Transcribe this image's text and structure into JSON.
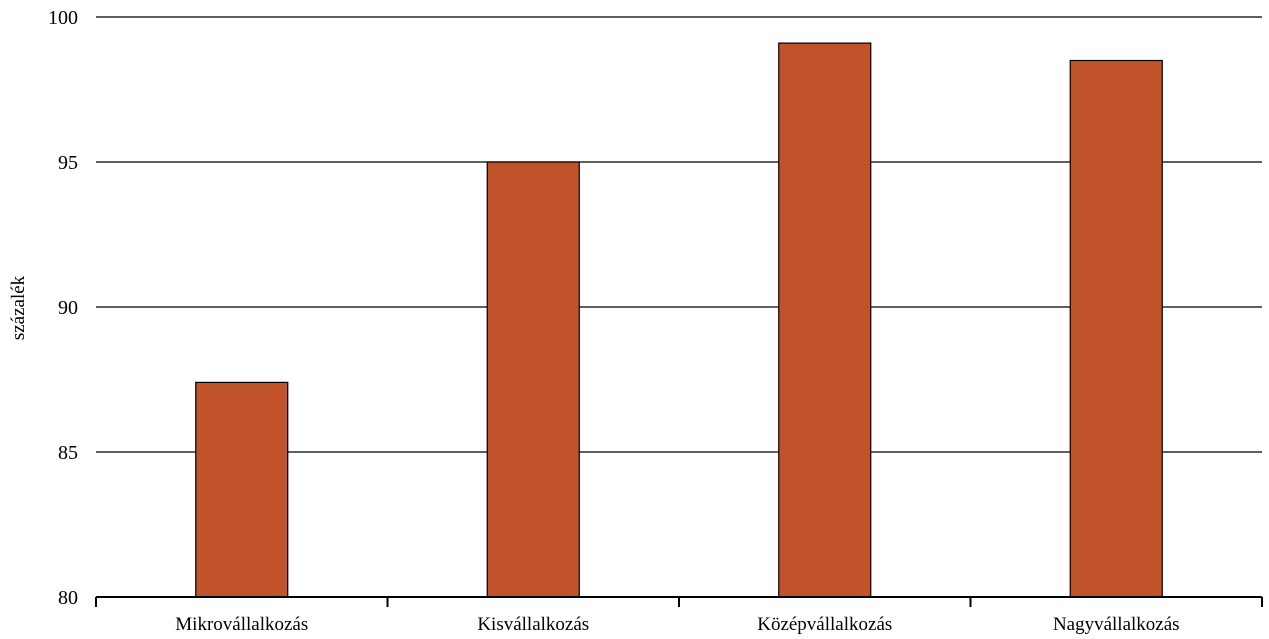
{
  "chart_data": {
    "type": "bar",
    "title": "",
    "xlabel": "",
    "ylabel": "százalék",
    "categories": [
      "Mikrovállalkozás",
      "Kisvállalkozás",
      "Középvállalkozás",
      "Nagyvállalkozás"
    ],
    "values": [
      87.4,
      95.0,
      99.1,
      98.5
    ],
    "ylim": [
      80,
      100
    ],
    "yticks": [
      80,
      85,
      90,
      95,
      100
    ],
    "ytick_labels": [
      "80",
      "85",
      "90",
      "95",
      "100"
    ],
    "grid": true,
    "legend": "none",
    "bar_color": "#C0532A",
    "bar_edge_color": "#000000"
  }
}
